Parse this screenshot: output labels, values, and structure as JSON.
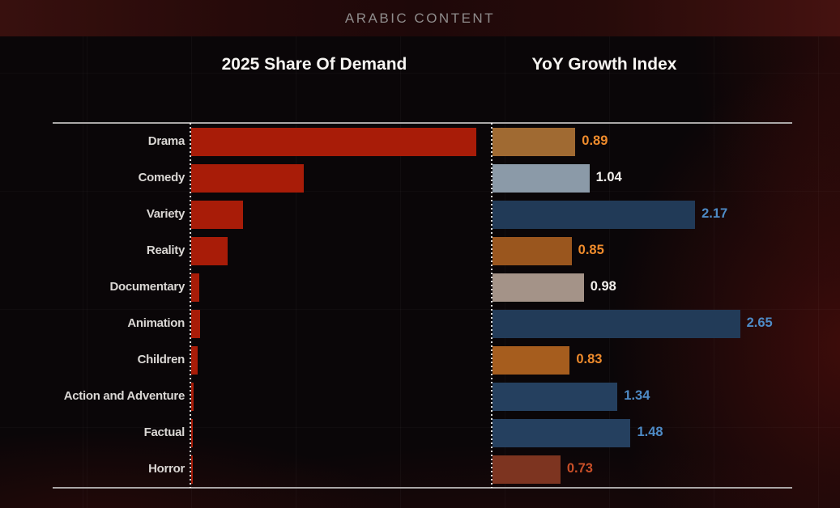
{
  "header": {
    "title": "ARABIC CONTENT"
  },
  "panels": {
    "left_title": "2025 Share Of Demand",
    "right_title": "YoY Growth Index"
  },
  "colors": {
    "demand_bar": "#a81c08",
    "category_label": "#dad7d4",
    "rule_line": "#aaa7a7",
    "band_title": "#8f8c8c",
    "panel_title": "#f7f5f2",
    "yoy_label_orange": "#ef8b2c",
    "yoy_label_white": "#f2efec",
    "yoy_label_blue": "#4e8bc6",
    "yoy_label_rust": "#c94f28"
  },
  "chart_data": [
    {
      "type": "bar",
      "orientation": "horizontal",
      "title": "2025 Share Of Demand",
      "categories": [
        "Drama",
        "Comedy",
        "Variety",
        "Reality",
        "Documentary",
        "Animation",
        "Children",
        "Action and Adventure",
        "Factual",
        "Horror"
      ],
      "values_pct_of_max_est": [
        100,
        39.5,
        18.2,
        12.8,
        3.1,
        3.4,
        2.3,
        1.1,
        0.6,
        0.6
      ],
      "bar_color": "#a81c08",
      "data_labels": false,
      "note_axis": "no numeric axis labels shown; values estimated from bar lengths relative to Drama (max)"
    },
    {
      "type": "bar",
      "orientation": "horizontal",
      "title": "YoY Growth Index",
      "categories": [
        "Drama",
        "Comedy",
        "Variety",
        "Reality",
        "Documentary",
        "Animation",
        "Children",
        "Action and Adventure",
        "Factual",
        "Horror"
      ],
      "values": [
        0.89,
        1.04,
        2.17,
        0.85,
        0.98,
        2.65,
        0.83,
        1.34,
        1.48,
        0.73
      ],
      "value_labels": [
        "0.89",
        "1.04",
        "2.17",
        "0.85",
        "0.98",
        "2.65",
        "0.83",
        "1.34",
        "1.48",
        "0.73"
      ],
      "bar_colors": [
        "#a06a32",
        "#8b9aa8",
        "#213a57",
        "#9a561e",
        "#a49388",
        "#223b58",
        "#a65d1e",
        "#25405f",
        "#25405f",
        "#7d3420"
      ],
      "value_label_colors": [
        "#ef8b2c",
        "#f2efec",
        "#4e8bc6",
        "#ef8b2c",
        "#f2efec",
        "#4e8bc6",
        "#ef8b2c",
        "#4e8bc6",
        "#4e8bc6",
        "#c94f28"
      ],
      "data_labels": true
    }
  ]
}
